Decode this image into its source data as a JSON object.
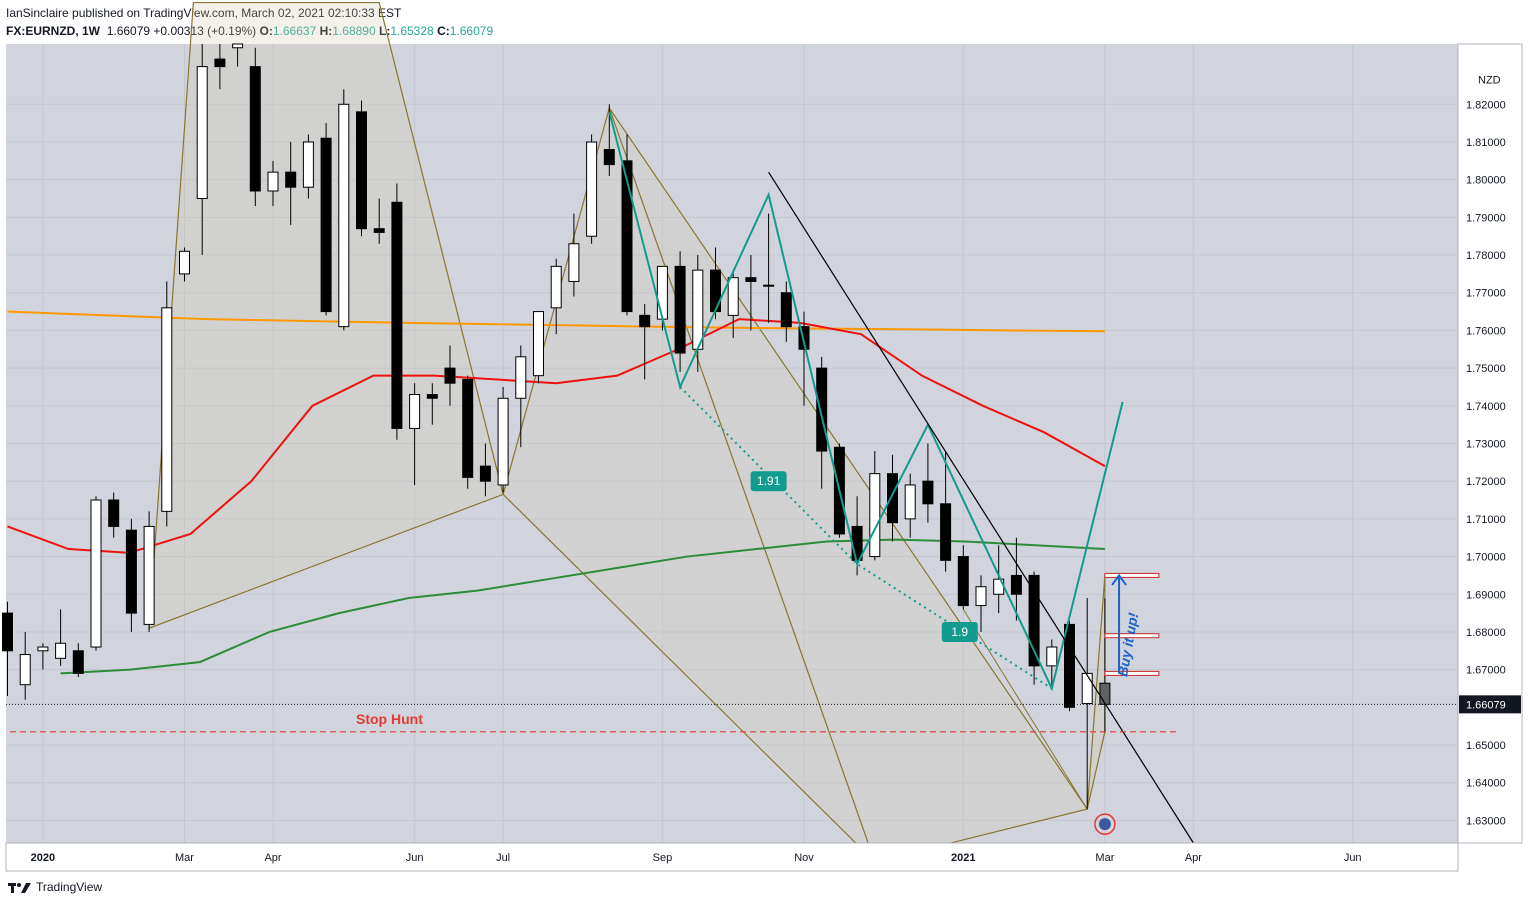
{
  "header": {
    "published_by": "IanSinclaire published on TradingView.com, March 02, 2021 02:10:33 EST",
    "symbol": "FX:EURNZD, 1W",
    "last": "1.66079",
    "change": "+0.00313 (+0.19%)",
    "o_label": "O:",
    "o_value": "1.66637",
    "h_label": "H:",
    "h_value": "1.68890",
    "l_label": "L:",
    "l_value": "1.65328",
    "c_label": "C:",
    "c_value": "1.66079"
  },
  "price_axis": {
    "currency": "NZD",
    "ticks": [
      "1.82000",
      "1.81000",
      "1.80000",
      "1.79000",
      "1.78000",
      "1.77000",
      "1.76000",
      "1.75000",
      "1.74000",
      "1.73000",
      "1.72000",
      "1.71000",
      "1.70000",
      "1.69000",
      "1.68000",
      "1.67000",
      "1.65000",
      "1.64000",
      "1.63000"
    ],
    "current_price_label": "1.66079"
  },
  "time_axis": {
    "labels": [
      "2020",
      "Mar",
      "Apr",
      "Jun",
      "Jul",
      "Sep",
      "Nov",
      "2021",
      "Mar",
      "Apr",
      "Jun"
    ]
  },
  "annotations": {
    "stop_hunt": "Stop Hunt",
    "buy_it_up": "Buy it up!",
    "ratio_1": "1.91",
    "ratio_2": "1.9"
  },
  "footer": {
    "brand": "TradingView"
  },
  "colors": {
    "background": "#d1d4dc",
    "up_candle": "#ffffff",
    "down_candle": "#000000",
    "ema_orange": "#ff9800",
    "ema_red": "#f01010",
    "ema_green": "#2e8b3a",
    "pattern_teal": "#129c8f",
    "trend_brown": "#8b7533",
    "stop_hunt_red": "#e53935",
    "buy_blue": "#1e62c8"
  },
  "chart_data": {
    "type": "candlestick",
    "symbol": "FX:EURNZD",
    "timeframe": "1W",
    "ylim": [
      1.624,
      1.836
    ],
    "candles": [
      {
        "o": 1.685,
        "h": 1.688,
        "l": 1.663,
        "c": 1.675
      },
      {
        "o": 1.666,
        "h": 1.68,
        "l": 1.662,
        "c": 1.674
      },
      {
        "o": 1.675,
        "h": 1.677,
        "l": 1.67,
        "c": 1.676
      },
      {
        "o": 1.673,
        "h": 1.686,
        "l": 1.671,
        "c": 1.677
      },
      {
        "o": 1.675,
        "h": 1.677,
        "l": 1.668,
        "c": 1.669
      },
      {
        "o": 1.676,
        "h": 1.716,
        "l": 1.675,
        "c": 1.715
      },
      {
        "o": 1.715,
        "h": 1.717,
        "l": 1.705,
        "c": 1.708
      },
      {
        "o": 1.707,
        "h": 1.71,
        "l": 1.68,
        "c": 1.685
      },
      {
        "o": 1.682,
        "h": 1.712,
        "l": 1.68,
        "c": 1.708
      },
      {
        "o": 1.712,
        "h": 1.773,
        "l": 1.708,
        "c": 1.766
      },
      {
        "o": 1.775,
        "h": 1.782,
        "l": 1.773,
        "c": 1.781
      },
      {
        "o": 1.795,
        "h": 1.85,
        "l": 1.78,
        "c": 1.83
      },
      {
        "o": 1.832,
        "h": 1.845,
        "l": 1.824,
        "c": 1.83
      },
      {
        "o": 1.835,
        "h": 1.845,
        "l": 1.83,
        "c": 1.84
      },
      {
        "o": 1.83,
        "h": 1.835,
        "l": 1.793,
        "c": 1.797
      },
      {
        "o": 1.797,
        "h": 1.805,
        "l": 1.793,
        "c": 1.802
      },
      {
        "o": 1.802,
        "h": 1.81,
        "l": 1.788,
        "c": 1.798
      },
      {
        "o": 1.798,
        "h": 1.812,
        "l": 1.795,
        "c": 1.81
      },
      {
        "o": 1.811,
        "h": 1.815,
        "l": 1.764,
        "c": 1.765
      },
      {
        "o": 1.761,
        "h": 1.824,
        "l": 1.76,
        "c": 1.82
      },
      {
        "o": 1.818,
        "h": 1.821,
        "l": 1.785,
        "c": 1.787
      },
      {
        "o": 1.787,
        "h": 1.795,
        "l": 1.783,
        "c": 1.786
      },
      {
        "o": 1.794,
        "h": 1.799,
        "l": 1.731,
        "c": 1.734
      },
      {
        "o": 1.734,
        "h": 1.746,
        "l": 1.719,
        "c": 1.743
      },
      {
        "o": 1.743,
        "h": 1.746,
        "l": 1.735,
        "c": 1.742
      },
      {
        "o": 1.75,
        "h": 1.756,
        "l": 1.74,
        "c": 1.746
      },
      {
        "o": 1.747,
        "h": 1.748,
        "l": 1.718,
        "c": 1.721
      },
      {
        "o": 1.724,
        "h": 1.73,
        "l": 1.716,
        "c": 1.72
      },
      {
        "o": 1.719,
        "h": 1.745,
        "l": 1.717,
        "c": 1.742
      },
      {
        "o": 1.742,
        "h": 1.756,
        "l": 1.729,
        "c": 1.753
      },
      {
        "o": 1.748,
        "h": 1.765,
        "l": 1.746,
        "c": 1.765
      },
      {
        "o": 1.766,
        "h": 1.779,
        "l": 1.759,
        "c": 1.777
      },
      {
        "o": 1.773,
        "h": 1.791,
        "l": 1.769,
        "c": 1.783
      },
      {
        "o": 1.785,
        "h": 1.812,
        "l": 1.783,
        "c": 1.81
      },
      {
        "o": 1.808,
        "h": 1.82,
        "l": 1.801,
        "c": 1.804
      },
      {
        "o": 1.805,
        "h": 1.812,
        "l": 1.764,
        "c": 1.765
      },
      {
        "o": 1.764,
        "h": 1.767,
        "l": 1.747,
        "c": 1.761
      },
      {
        "o": 1.763,
        "h": 1.777,
        "l": 1.76,
        "c": 1.777
      },
      {
        "o": 1.777,
        "h": 1.781,
        "l": 1.749,
        "c": 1.754
      },
      {
        "o": 1.755,
        "h": 1.78,
        "l": 1.749,
        "c": 1.776
      },
      {
        "o": 1.776,
        "h": 1.782,
        "l": 1.763,
        "c": 1.765
      },
      {
        "o": 1.764,
        "h": 1.776,
        "l": 1.758,
        "c": 1.774
      },
      {
        "o": 1.774,
        "h": 1.78,
        "l": 1.76,
        "c": 1.773
      },
      {
        "o": 1.772,
        "h": 1.791,
        "l": 1.762,
        "c": 1.772
      },
      {
        "o": 1.77,
        "h": 1.773,
        "l": 1.757,
        "c": 1.761
      },
      {
        "o": 1.761,
        "h": 1.765,
        "l": 1.74,
        "c": 1.755
      },
      {
        "o": 1.75,
        "h": 1.753,
        "l": 1.718,
        "c": 1.728
      },
      {
        "o": 1.729,
        "h": 1.73,
        "l": 1.705,
        "c": 1.706
      },
      {
        "o": 1.708,
        "h": 1.716,
        "l": 1.695,
        "c": 1.699
      },
      {
        "o": 1.7,
        "h": 1.728,
        "l": 1.699,
        "c": 1.722
      },
      {
        "o": 1.722,
        "h": 1.727,
        "l": 1.704,
        "c": 1.709
      },
      {
        "o": 1.71,
        "h": 1.722,
        "l": 1.705,
        "c": 1.719
      },
      {
        "o": 1.72,
        "h": 1.73,
        "l": 1.709,
        "c": 1.714
      },
      {
        "o": 1.714,
        "h": 1.728,
        "l": 1.696,
        "c": 1.699
      },
      {
        "o": 1.7,
        "h": 1.703,
        "l": 1.686,
        "c": 1.687
      },
      {
        "o": 1.687,
        "h": 1.695,
        "l": 1.68,
        "c": 1.692
      },
      {
        "o": 1.69,
        "h": 1.703,
        "l": 1.685,
        "c": 1.694
      },
      {
        "o": 1.695,
        "h": 1.705,
        "l": 1.683,
        "c": 1.69
      },
      {
        "o": 1.695,
        "h": 1.696,
        "l": 1.666,
        "c": 1.671
      },
      {
        "o": 1.671,
        "h": 1.678,
        "l": 1.665,
        "c": 1.676
      },
      {
        "o": 1.682,
        "h": 1.683,
        "l": 1.659,
        "c": 1.66
      },
      {
        "o": 1.661,
        "h": 1.689,
        "l": 1.633,
        "c": 1.669
      },
      {
        "o": 1.6664,
        "h": 1.6889,
        "l": 1.6533,
        "c": 1.6608
      }
    ],
    "indicators": [
      {
        "type": "moving-average",
        "color": "#ff9800",
        "values": [
          1.765,
          1.764,
          1.763,
          1.7625,
          1.762,
          1.7616,
          1.7612,
          1.7608,
          1.7605,
          1.7603,
          1.76,
          1.7598
        ]
      },
      {
        "type": "moving-average",
        "color": "#f01010",
        "values": [
          1.708,
          1.702,
          1.701,
          1.706,
          1.72,
          1.74,
          1.748,
          1.748,
          1.747,
          1.746,
          1.748,
          1.755,
          1.763,
          1.762,
          1.759,
          1.748,
          1.74,
          1.733,
          1.724
        ]
      },
      {
        "type": "moving-average",
        "color": "#2e8b3a",
        "values": [
          1.669,
          1.67,
          1.672,
          1.68,
          1.685,
          1.689,
          1.691,
          1.694,
          1.697,
          1.7,
          1.702,
          1.704,
          1.7045,
          1.704,
          1.703,
          1.702
        ]
      }
    ],
    "annotations": {
      "horizontal_line": 1.6535,
      "targets": [
        1.695,
        1.679,
        1.669
      ],
      "ratios": [
        "1.91",
        "1.9"
      ],
      "texts": [
        "Stop Hunt",
        "Buy it up!"
      ]
    }
  }
}
